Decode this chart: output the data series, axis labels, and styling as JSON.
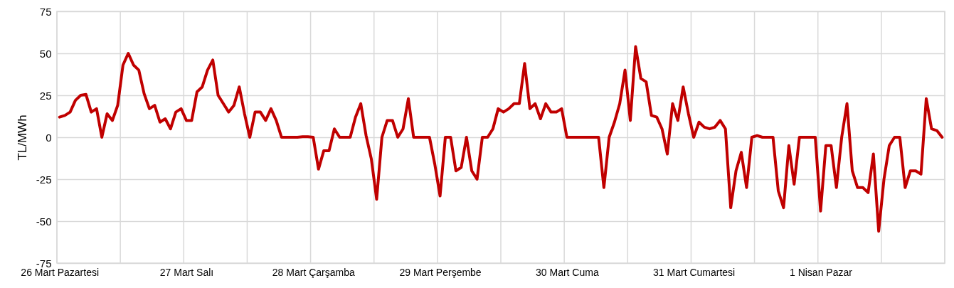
{
  "chart_data": {
    "type": "line",
    "ylabel": "TL/MWh",
    "categories": [
      "26 Mart Pazartesi",
      null,
      null,
      null,
      null,
      null,
      null,
      null,
      null,
      null,
      null,
      null,
      null,
      null,
      null,
      null,
      null,
      null,
      null,
      null,
      null,
      null,
      null,
      null,
      "27 Mart Salı",
      null,
      null,
      null,
      null,
      null,
      null,
      null,
      null,
      null,
      null,
      null,
      null,
      null,
      null,
      null,
      null,
      null,
      null,
      null,
      null,
      null,
      null,
      null,
      "28 Mart Çarşamba",
      null,
      null,
      null,
      null,
      null,
      null,
      null,
      null,
      null,
      null,
      null,
      null,
      null,
      null,
      null,
      null,
      null,
      null,
      null,
      null,
      null,
      null,
      null,
      "29 Mart Perşembe",
      null,
      null,
      null,
      null,
      null,
      null,
      null,
      null,
      null,
      null,
      null,
      null,
      null,
      null,
      null,
      null,
      null,
      null,
      null,
      null,
      null,
      null,
      null,
      "30 Mart Cuma",
      null,
      null,
      null,
      null,
      null,
      null,
      null,
      null,
      null,
      null,
      null,
      null,
      null,
      null,
      null,
      null,
      null,
      null,
      null,
      null,
      null,
      null,
      null,
      "31 Mart Cumartesi",
      null,
      null,
      null,
      null,
      null,
      null,
      null,
      null,
      null,
      null,
      null,
      null,
      null,
      null,
      null,
      null,
      null,
      null,
      null,
      null,
      null,
      null,
      null,
      "1 Nisan Pazar",
      null,
      null,
      null,
      null,
      null,
      null,
      null,
      null,
      null,
      null,
      null,
      null,
      null,
      null,
      null,
      null,
      null,
      null,
      null,
      null,
      null,
      null,
      null
    ],
    "series": [
      {
        "color": "#c00000",
        "values": [
          12,
          13,
          15,
          22,
          25,
          25.5,
          15,
          17,
          0,
          14,
          10,
          19,
          43,
          50,
          43,
          40,
          26,
          17,
          19,
          9,
          11,
          5,
          15,
          17,
          10,
          10,
          27,
          30,
          40,
          46,
          25,
          20,
          15,
          19,
          30,
          14,
          0,
          15,
          15,
          10,
          17,
          10,
          0,
          0,
          0,
          0,
          0.3,
          0.3,
          0,
          -19,
          -8,
          -8,
          5,
          0,
          0,
          0,
          12,
          20,
          1,
          -13,
          -37,
          0,
          10,
          10,
          0,
          5,
          23,
          0,
          0,
          0,
          0,
          -16,
          -35,
          0,
          0,
          -20,
          -18,
          0,
          -20,
          -25,
          0,
          0,
          5,
          17,
          15,
          17,
          20,
          20,
          44,
          17,
          20,
          11,
          20,
          15,
          15,
          17,
          0,
          0,
          0,
          0,
          0,
          0,
          0,
          -30,
          0,
          9,
          20,
          40,
          10,
          54,
          35,
          33,
          13,
          12,
          5,
          -10,
          20,
          10,
          30,
          14,
          0,
          9,
          6,
          5,
          6,
          10,
          5,
          -42,
          -20,
          -9,
          -30,
          0,
          1,
          0,
          0,
          0,
          -32,
          -42,
          -5,
          -28,
          0,
          0,
          0,
          0,
          -44,
          -5,
          -5,
          -30,
          0,
          20,
          -20,
          -30,
          -30,
          -33,
          -10,
          -56,
          -25,
          -5,
          0,
          0,
          -30,
          -20,
          -20,
          -22,
          23,
          5,
          4,
          0
        ]
      }
    ],
    "ylim": [
      -75,
      75
    ],
    "yticks": [
      -75,
      -50,
      -25,
      0,
      25,
      50,
      75
    ],
    "grid": true,
    "marker": "none",
    "line_style": "solid"
  }
}
